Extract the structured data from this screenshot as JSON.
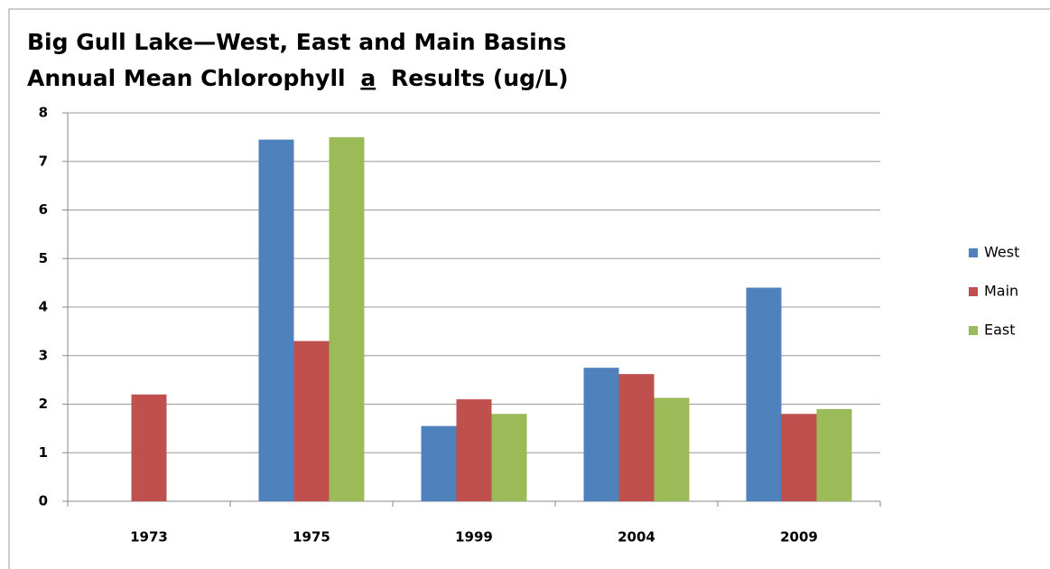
{
  "chart_data": {
    "type": "bar",
    "title": "Big Gull Lake—West, East and Main Basins",
    "subtitle": [
      "Annual Mean Chlorophyll",
      "a",
      "Results (ug/L)"
    ],
    "categories": [
      "1973",
      "1975",
      "1999",
      "2004",
      "2009"
    ],
    "series": [
      {
        "name": "West",
        "color": "#4f81bd",
        "values": [
          null,
          7.45,
          1.55,
          2.75,
          4.4
        ]
      },
      {
        "name": "Main",
        "color": "#c0504d",
        "values": [
          2.2,
          3.3,
          2.1,
          2.62,
          1.8
        ]
      },
      {
        "name": "East",
        "color": "#9bbb59",
        "values": [
          null,
          7.5,
          1.8,
          2.13,
          1.9
        ]
      }
    ],
    "ylim": [
      0,
      8
    ],
    "yticks": [
      0,
      1,
      2,
      3,
      4,
      5,
      6,
      7,
      8
    ],
    "grid": true,
    "legend": "right"
  }
}
